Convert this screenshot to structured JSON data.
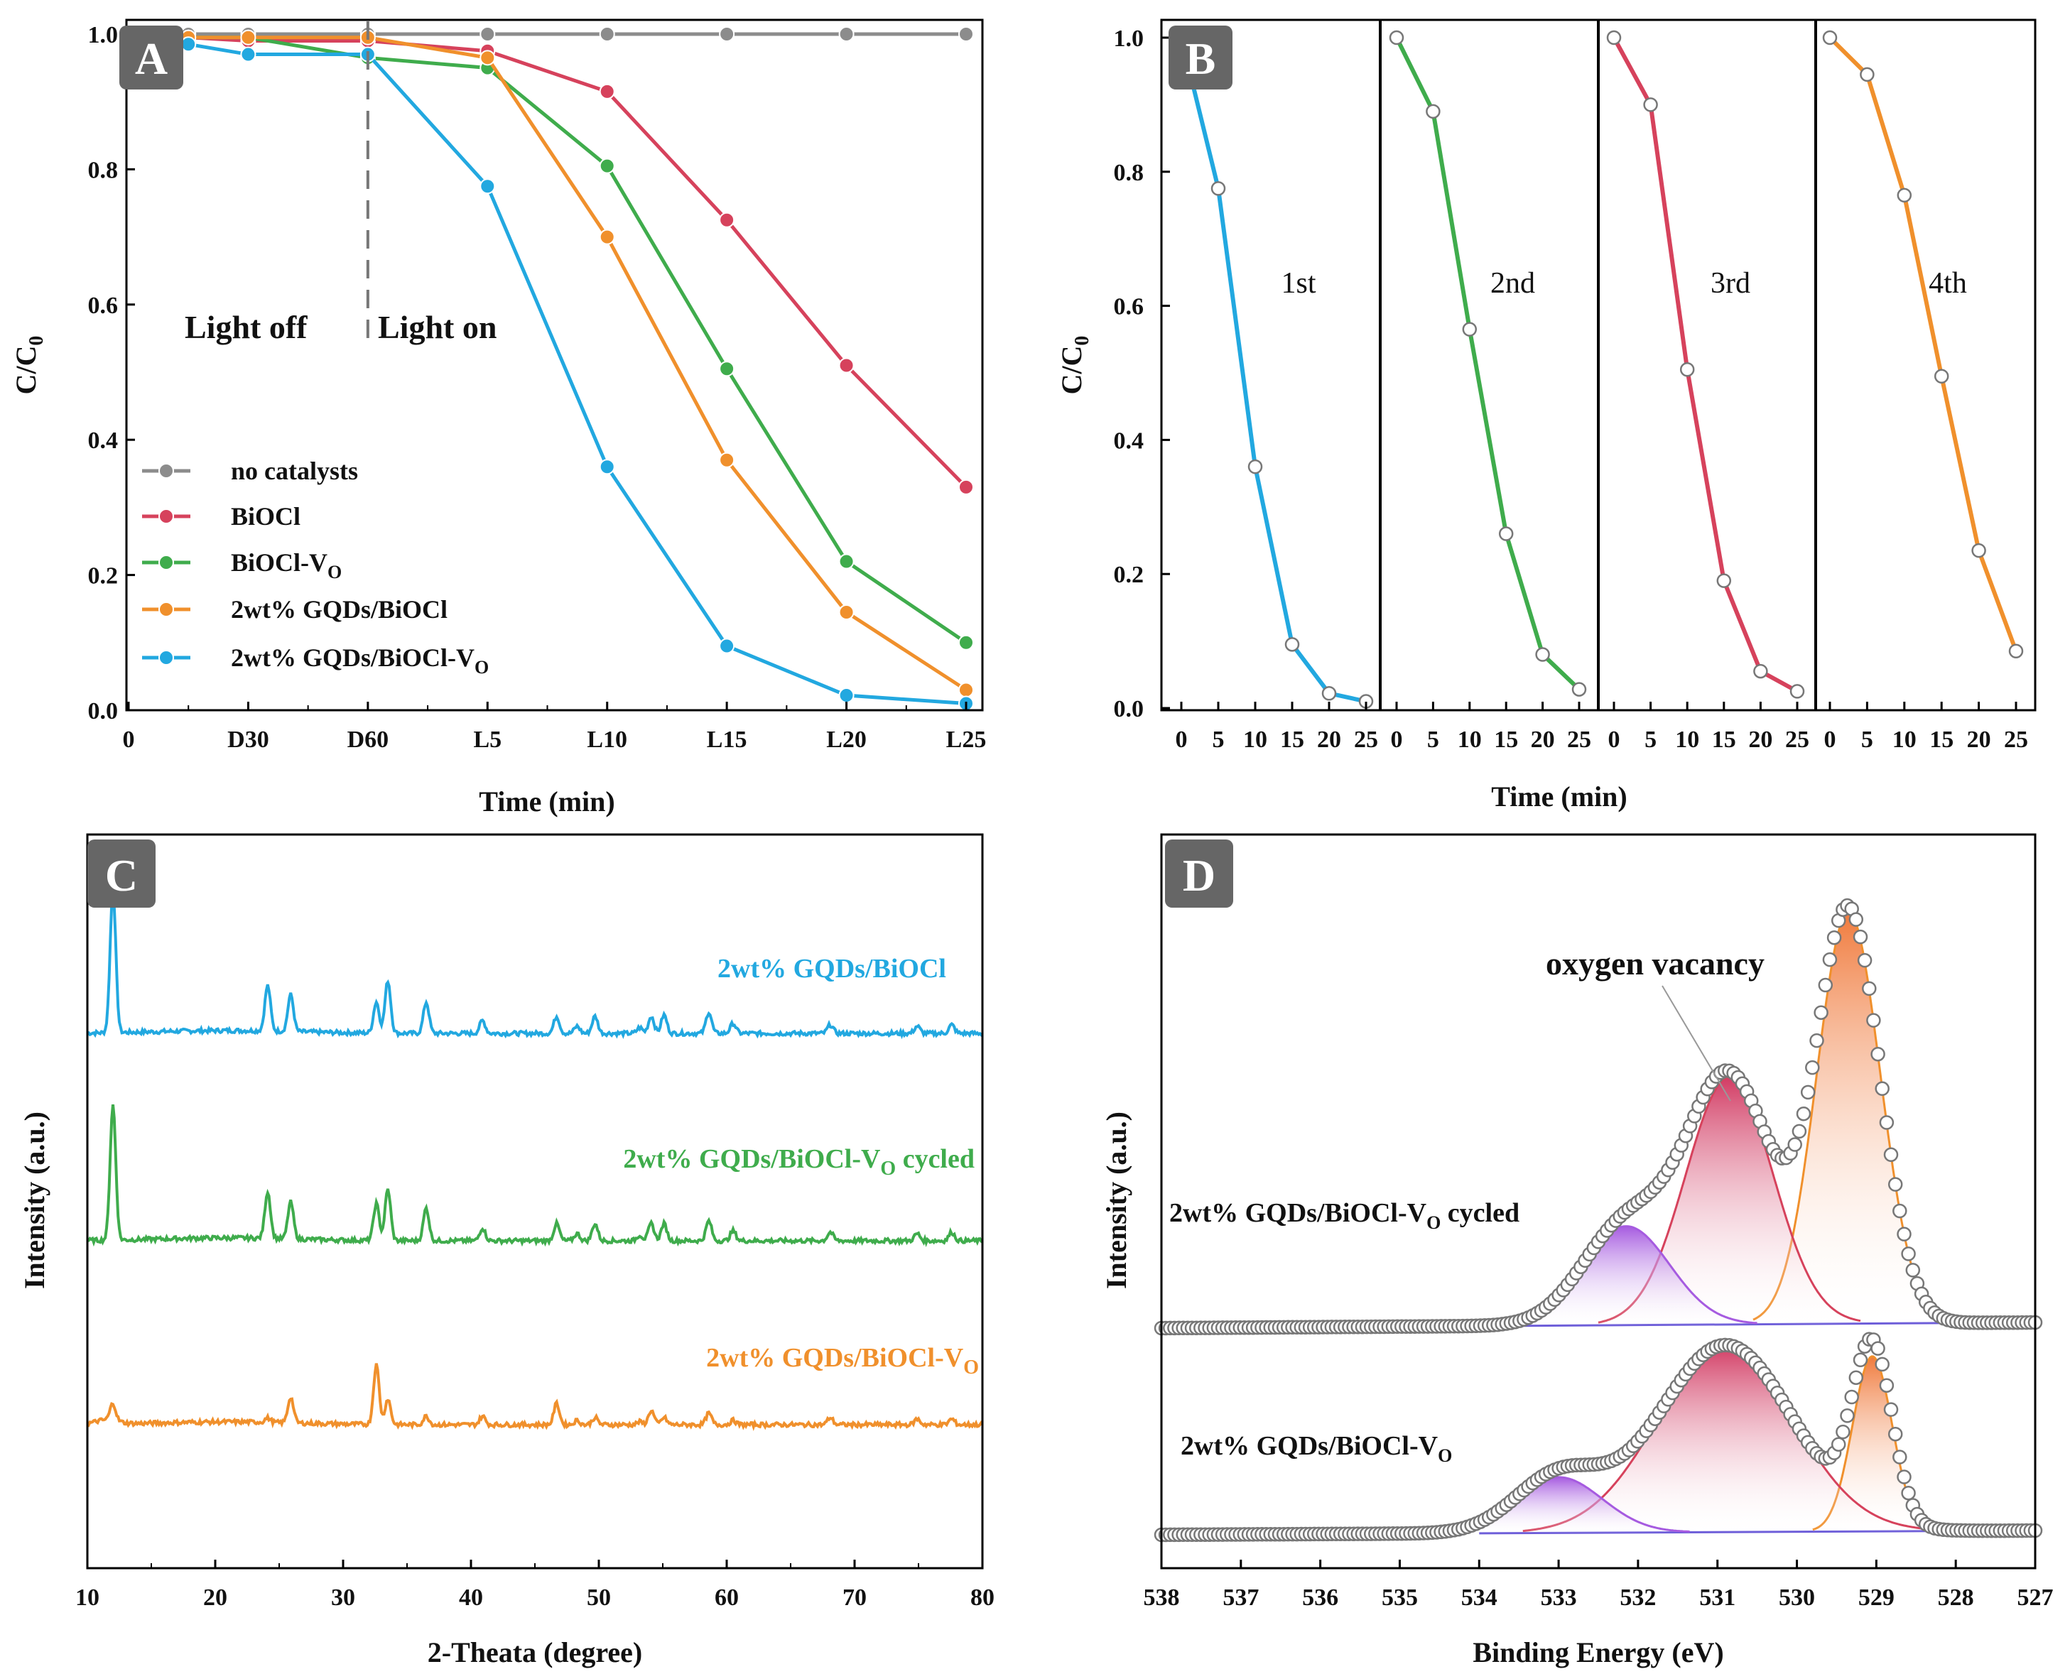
{
  "colors": {
    "gray": "#8c8c8c",
    "red": "#d6425c",
    "green": "#3fac4c",
    "orange": "#f0902c",
    "blue": "#22a8e0",
    "purple": "#a65be0",
    "line_purple": "#6a5ad8",
    "badge": "#666666"
  },
  "chart_data": [
    {
      "panel": "A",
      "type": "line",
      "badge": "A",
      "xlabel": "Time (min)",
      "ylabel": "C/C",
      "ylabel_sub": "0",
      "categories": [
        "0",
        "D30",
        "D60",
        "L5",
        "L10",
        "L15",
        "L20",
        "L25"
      ],
      "yticks": [
        "0.0",
        "0.2",
        "0.4",
        "0.6",
        "0.8",
        "1.0"
      ],
      "ylim": [
        0,
        1.02
      ],
      "annotations": {
        "dark": "Light off",
        "light": "Light on"
      },
      "series": [
        {
          "name": "no catalysts",
          "sub": "",
          "color_key": "gray",
          "x": [
            0.5,
            1,
            2,
            3,
            4,
            5,
            6,
            7
          ],
          "values": [
            1.0,
            1.0,
            1.0,
            1.0,
            1.0,
            1.0,
            1.0,
            1.0
          ]
        },
        {
          "name": "BiOCl",
          "sub": "",
          "color_key": "red",
          "x": [
            0.5,
            1,
            2,
            3,
            4,
            5,
            6,
            7
          ],
          "values": [
            0.995,
            0.99,
            0.99,
            0.975,
            0.915,
            0.725,
            0.51,
            0.33
          ]
        },
        {
          "name": "BiOCl-V",
          "sub": "O",
          "color_key": "green",
          "x": [
            0.5,
            1,
            2,
            3,
            4,
            5,
            6,
            7
          ],
          "values": [
            0.995,
            0.995,
            0.965,
            0.95,
            0.805,
            0.505,
            0.22,
            0.1
          ]
        },
        {
          "name": "2wt% GQDs/BiOCl",
          "sub": "",
          "color_key": "orange",
          "x": [
            0.5,
            1,
            2,
            3,
            4,
            5,
            6,
            7
          ],
          "values": [
            0.995,
            0.995,
            0.995,
            0.965,
            0.7,
            0.37,
            0.145,
            0.03
          ]
        },
        {
          "name": "2wt% GQDs/BiOCl-V",
          "sub": "O",
          "color_key": "blue",
          "x": [
            0.5,
            1,
            2,
            3,
            4,
            5,
            6,
            7
          ],
          "values": [
            0.985,
            0.97,
            0.97,
            0.775,
            0.36,
            0.095,
            0.022,
            0.01
          ]
        }
      ]
    },
    {
      "panel": "B",
      "type": "line",
      "badge": "B",
      "xlabel": "Time (min)",
      "ylabel": "C/C",
      "ylabel_sub": "0",
      "yticks": [
        "0.0",
        "0.2",
        "0.4",
        "0.6",
        "0.8",
        "1.0"
      ],
      "ylim": [
        0,
        1.0
      ],
      "xticks": [
        "0",
        "5",
        "10",
        "15",
        "20",
        "25"
      ],
      "cycles": [
        {
          "label": "1st",
          "color_key": "blue",
          "x": [
            0,
            5,
            10,
            15,
            20,
            25
          ],
          "values": [
            1.0,
            0.775,
            0.36,
            0.095,
            0.022,
            0.01
          ]
        },
        {
          "label": "2nd",
          "color_key": "green",
          "x": [
            0,
            5,
            10,
            15,
            20,
            25
          ],
          "values": [
            1.0,
            0.89,
            0.565,
            0.26,
            0.08,
            0.028
          ]
        },
        {
          "label": "3rd",
          "color_key": "red",
          "x": [
            0,
            5,
            10,
            15,
            20,
            25
          ],
          "values": [
            1.0,
            0.9,
            0.505,
            0.19,
            0.055,
            0.025
          ]
        },
        {
          "label": "4th",
          "color_key": "orange",
          "x": [
            0,
            5,
            10,
            15,
            20,
            25
          ],
          "values": [
            1.0,
            0.945,
            0.765,
            0.495,
            0.235,
            0.085
          ]
        }
      ]
    },
    {
      "panel": "C",
      "type": "line",
      "badge": "C",
      "xlabel": "2-Theata (degree)",
      "ylabel": "Intensity (a.u.)",
      "xlim": [
        10,
        80
      ],
      "xticks": [
        "10",
        "20",
        "30",
        "40",
        "50",
        "60",
        "70",
        "80"
      ],
      "peaks_deg": [
        12.0,
        24.1,
        25.9,
        32.6,
        33.5,
        36.5,
        40.9,
        46.7,
        48.3,
        49.7,
        53.2,
        54.1,
        55.1,
        58.6,
        60.5,
        68.1,
        74.9,
        77.6
      ],
      "patterns": [
        {
          "label": "2wt% GQDs/BiOCl",
          "sub": "",
          "suffix": "",
          "color_key": "blue",
          "rel_intensity": [
            1.0,
            0.32,
            0.26,
            0.22,
            0.37,
            0.22,
            0.09,
            0.12,
            0.05,
            0.12,
            0.04,
            0.12,
            0.13,
            0.15,
            0.07,
            0.06,
            0.05,
            0.06
          ]
        },
        {
          "label": "2wt% GQDs/BiOCl-V",
          "sub": "O",
          "suffix": " cycled",
          "color_key": "green",
          "rel_intensity": [
            0.95,
            0.33,
            0.26,
            0.26,
            0.36,
            0.23,
            0.09,
            0.12,
            0.05,
            0.12,
            0.04,
            0.12,
            0.12,
            0.14,
            0.07,
            0.06,
            0.05,
            0.06
          ]
        },
        {
          "label": "2wt% GQDs/BiOCl-V",
          "sub": "O",
          "suffix": "",
          "color_key": "orange",
          "rel_intensity": [
            0.12,
            0.03,
            0.18,
            0.42,
            0.18,
            0.06,
            0.06,
            0.15,
            0.03,
            0.05,
            0.02,
            0.1,
            0.05,
            0.08,
            0.03,
            0.05,
            0.04,
            0.04
          ]
        }
      ]
    },
    {
      "panel": "D",
      "type": "line",
      "badge": "D",
      "xlabel": "Binding Energy (eV)",
      "ylabel": "Intensity (a.u.)",
      "xlim": [
        538,
        527
      ],
      "xticks": [
        "538",
        "537",
        "536",
        "535",
        "534",
        "533",
        "532",
        "531",
        "530",
        "529",
        "528",
        "527"
      ],
      "annotation": "oxygen vacancy",
      "spectra": [
        {
          "label": "2wt% GQDs/BiOCl-V",
          "sub": "O",
          "suffix": " cycled",
          "components": [
            {
              "center": 529.35,
              "height": 1.0,
              "width": 0.4,
              "color_key": "orange"
            },
            {
              "center": 530.85,
              "height": 0.6,
              "width": 0.55,
              "color_key": "red"
            },
            {
              "center": 532.15,
              "height": 0.24,
              "width": 0.55,
              "color_key": "purple"
            }
          ]
        },
        {
          "label": "2wt% GQDs/BiOCl-V",
          "sub": "O",
          "suffix": "",
          "components": [
            {
              "center": 529.05,
              "height": 0.44,
              "width": 0.25,
              "color_key": "orange"
            },
            {
              "center": 530.9,
              "height": 0.47,
              "width": 0.85,
              "color_key": "red"
            },
            {
              "center": 533.0,
              "height": 0.14,
              "width": 0.55,
              "color_key": "purple"
            }
          ]
        }
      ]
    }
  ]
}
